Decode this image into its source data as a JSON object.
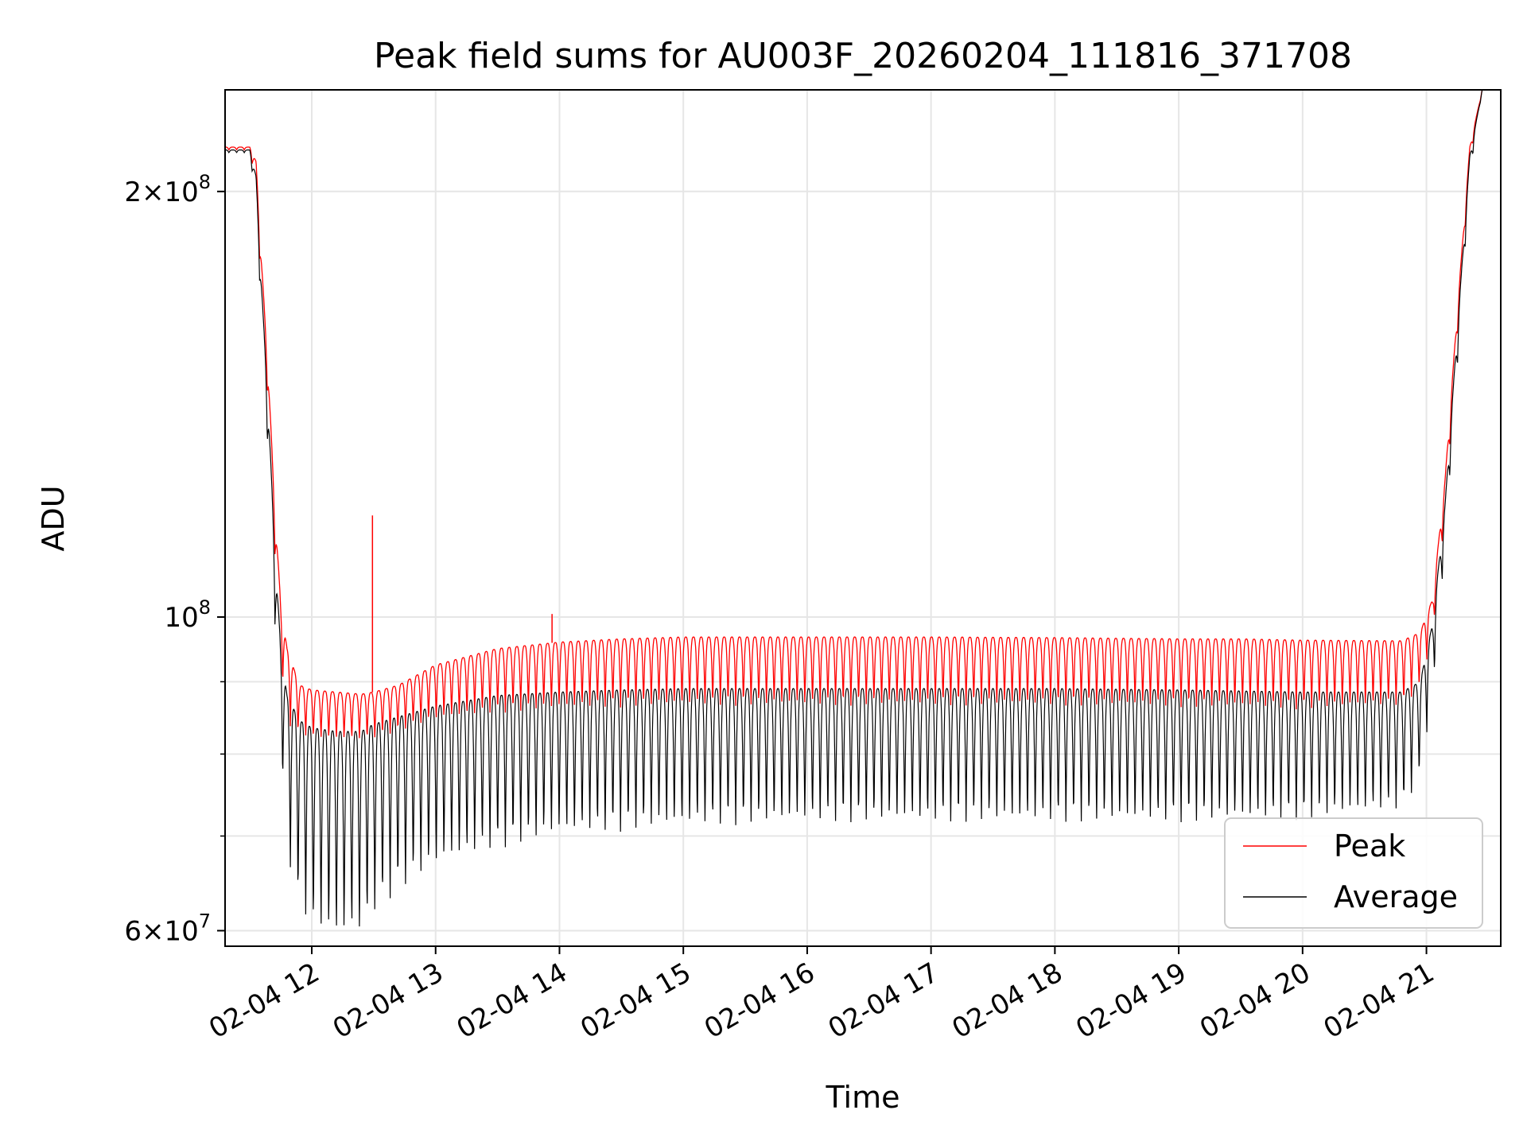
{
  "chart_data": {
    "type": "line",
    "title": "Peak field sums for AU003F_20260204_111816_371708",
    "xlabel": "Time",
    "ylabel": "ADU",
    "yscale": "log",
    "xlim_hours": [
      11.3,
      21.6
    ],
    "ylim": [
      58500000,
      236000000
    ],
    "grid": true,
    "x_ticks": [
      {
        "value": 12,
        "label": "02-04 12"
      },
      {
        "value": 13,
        "label": "02-04 13"
      },
      {
        "value": 14,
        "label": "02-04 14"
      },
      {
        "value": 15,
        "label": "02-04 15"
      },
      {
        "value": 16,
        "label": "02-04 16"
      },
      {
        "value": 17,
        "label": "02-04 17"
      },
      {
        "value": 18,
        "label": "02-04 18"
      },
      {
        "value": 19,
        "label": "02-04 19"
      },
      {
        "value": 20,
        "label": "02-04 20"
      },
      {
        "value": 21,
        "label": "02-04 21"
      }
    ],
    "y_major_ticks": [
      {
        "value": 60000000,
        "mant": "6",
        "exp": "7",
        "has_mant": true
      },
      {
        "value": 100000000,
        "mant": "",
        "exp": "8",
        "has_mant": false
      },
      {
        "value": 200000000,
        "mant": "2",
        "exp": "8",
        "has_mant": true
      }
    ],
    "y_minor_gridlines": [
      70000000,
      80000000,
      90000000
    ],
    "legend": {
      "location": "lower-right",
      "entries": [
        {
          "label": "Peak",
          "color": "#ff0000"
        },
        {
          "label": "Average",
          "color": "#000000"
        }
      ]
    },
    "series": [
      {
        "name": "Peak",
        "color": "#ff0000",
        "note": "oscillates between envelope_high and envelope_low with ~0.06 h period",
        "envelope_high": [
          [
            11.3,
            215000000
          ],
          [
            11.5,
            215000000
          ],
          [
            11.55,
            210000000
          ],
          [
            11.6,
            175000000
          ],
          [
            11.65,
            148000000
          ],
          [
            11.7,
            120000000
          ],
          [
            11.75,
            102000000
          ],
          [
            11.8,
            95000000
          ],
          [
            11.9,
            89500000
          ],
          [
            12.0,
            88800000
          ],
          [
            12.2,
            88500000
          ],
          [
            12.4,
            88200000
          ],
          [
            12.5,
            88500000
          ],
          [
            12.7,
            89500000
          ],
          [
            13.0,
            92500000
          ],
          [
            13.5,
            95000000
          ],
          [
            14.0,
            96000000
          ],
          [
            14.5,
            96500000
          ],
          [
            15.0,
            96800000
          ],
          [
            16.0,
            96800000
          ],
          [
            17.0,
            96800000
          ],
          [
            18.0,
            96700000
          ],
          [
            19.0,
            96500000
          ],
          [
            19.5,
            96500000
          ],
          [
            20.0,
            96300000
          ],
          [
            20.8,
            96200000
          ],
          [
            20.95,
            97500000
          ],
          [
            21.05,
            103000000
          ],
          [
            21.15,
            125000000
          ],
          [
            21.25,
            165000000
          ],
          [
            21.35,
            215000000
          ],
          [
            21.45,
            236000000
          ],
          [
            21.6,
            236000000
          ]
        ],
        "envelope_low": [
          [
            11.3,
            214000000
          ],
          [
            11.5,
            214000000
          ],
          [
            11.55,
            200000000
          ],
          [
            11.6,
            165000000
          ],
          [
            11.65,
            140000000
          ],
          [
            11.7,
            112000000
          ],
          [
            11.75,
            92000000
          ],
          [
            11.8,
            84000000
          ],
          [
            11.9,
            82500000
          ],
          [
            12.0,
            82000000
          ],
          [
            12.2,
            81800000
          ],
          [
            12.4,
            81800000
          ],
          [
            12.5,
            82000000
          ],
          [
            12.7,
            83000000
          ],
          [
            13.0,
            84500000
          ],
          [
            13.5,
            85500000
          ],
          [
            14.0,
            86000000
          ],
          [
            14.5,
            86300000
          ],
          [
            15.0,
            86500000
          ],
          [
            16.0,
            86500000
          ],
          [
            17.0,
            86500000
          ],
          [
            18.0,
            86500000
          ],
          [
            19.0,
            86300000
          ],
          [
            20.0,
            86000000
          ],
          [
            20.8,
            86500000
          ],
          [
            20.95,
            89000000
          ],
          [
            21.05,
            97000000
          ],
          [
            21.15,
            118000000
          ],
          [
            21.25,
            158000000
          ],
          [
            21.35,
            210000000
          ],
          [
            21.45,
            236000000
          ],
          [
            21.6,
            236000000
          ]
        ],
        "spikes": [
          {
            "x": 12.49,
            "value": 118000000
          },
          {
            "x": 13.94,
            "value": 100500000
          }
        ]
      },
      {
        "name": "Average",
        "color": "#000000",
        "note": "oscillates between envelope_high and envelope_low with ~0.06 h period",
        "envelope_high": [
          [
            11.3,
            214000000
          ],
          [
            11.5,
            214000000
          ],
          [
            11.55,
            205000000
          ],
          [
            11.6,
            168000000
          ],
          [
            11.65,
            140000000
          ],
          [
            11.7,
            112000000
          ],
          [
            11.75,
            95000000
          ],
          [
            11.8,
            88000000
          ],
          [
            11.9,
            84500000
          ],
          [
            12.0,
            83500000
          ],
          [
            12.2,
            83000000
          ],
          [
            12.4,
            83000000
          ],
          [
            12.5,
            84000000
          ],
          [
            12.7,
            85000000
          ],
          [
            13.0,
            86500000
          ],
          [
            13.5,
            88000000
          ],
          [
            14.0,
            88500000
          ],
          [
            14.5,
            88800000
          ],
          [
            15.0,
            89000000
          ],
          [
            16.0,
            89000000
          ],
          [
            17.0,
            89000000
          ],
          [
            18.0,
            89000000
          ],
          [
            19.0,
            88800000
          ],
          [
            20.0,
            88500000
          ],
          [
            20.8,
            88500000
          ],
          [
            20.95,
            90000000
          ],
          [
            21.05,
            99000000
          ],
          [
            21.15,
            120000000
          ],
          [
            21.25,
            160000000
          ],
          [
            21.35,
            212000000
          ],
          [
            21.45,
            236000000
          ],
          [
            21.6,
            236000000
          ]
        ],
        "envelope_low": [
          [
            11.3,
            213000000
          ],
          [
            11.5,
            213000000
          ],
          [
            11.55,
            195000000
          ],
          [
            11.6,
            158000000
          ],
          [
            11.65,
            128000000
          ],
          [
            11.7,
            100000000
          ],
          [
            11.75,
            80000000
          ],
          [
            11.8,
            68000000
          ],
          [
            11.9,
            62000000
          ],
          [
            12.0,
            60000000
          ],
          [
            12.2,
            59000000
          ],
          [
            12.4,
            59500000
          ],
          [
            12.5,
            61500000
          ],
          [
            12.7,
            64000000
          ],
          [
            13.0,
            66500000
          ],
          [
            13.5,
            68500000
          ],
          [
            14.0,
            70000000
          ],
          [
            14.5,
            70500000
          ],
          [
            15.0,
            71000000
          ],
          [
            16.0,
            71500000
          ],
          [
            17.0,
            71500000
          ],
          [
            18.0,
            71500000
          ],
          [
            19.0,
            71500000
          ],
          [
            20.0,
            71800000
          ],
          [
            20.8,
            73000000
          ],
          [
            20.95,
            77000000
          ],
          [
            21.05,
            88000000
          ],
          [
            21.15,
            112000000
          ],
          [
            21.25,
            150000000
          ],
          [
            21.35,
            205000000
          ],
          [
            21.45,
            236000000
          ],
          [
            21.6,
            236000000
          ]
        ]
      }
    ]
  }
}
